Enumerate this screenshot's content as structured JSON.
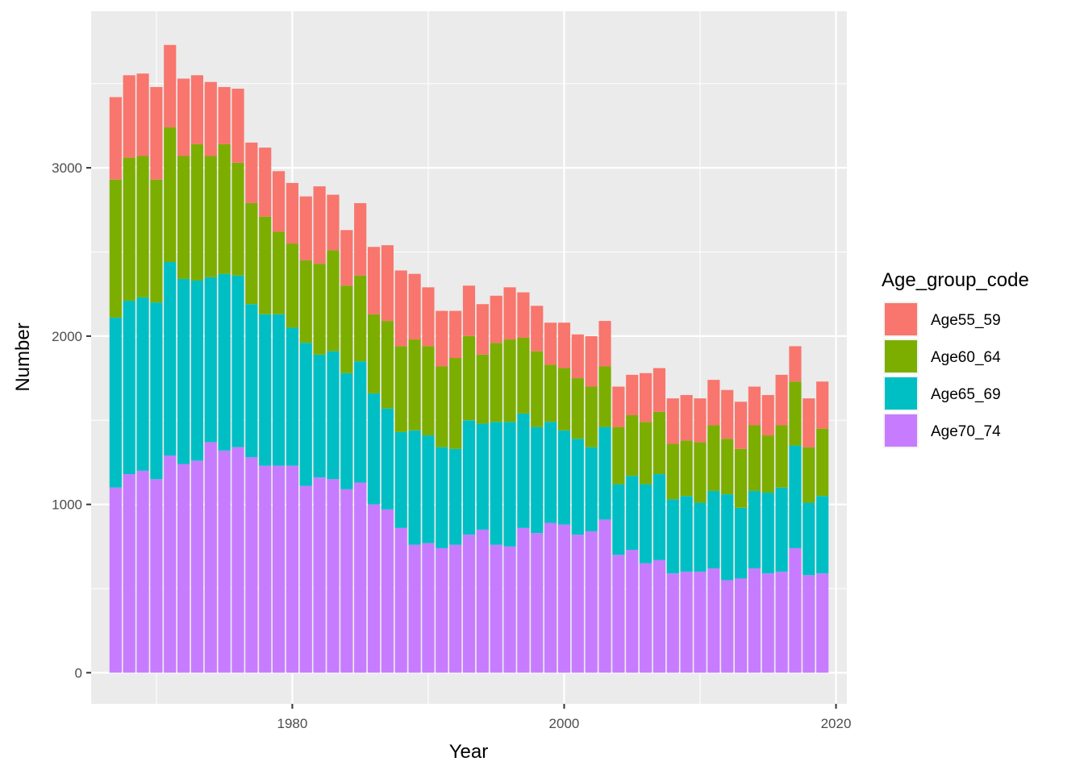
{
  "chart_data": {
    "type": "bar",
    "stacked": true,
    "xlabel": "Year",
    "ylabel": "Number",
    "xlim": [
      1965.2,
      2020.8
    ],
    "ylim": [
      -185,
      3930
    ],
    "xticks": [
      1980,
      2000,
      2020
    ],
    "yticks": [
      0,
      1000,
      2000,
      3000
    ],
    "grid": true,
    "legend_title": "Age_group_code",
    "legend_position": "right",
    "x": [
      1967,
      1968,
      1969,
      1970,
      1971,
      1972,
      1973,
      1974,
      1975,
      1976,
      1977,
      1978,
      1979,
      1980,
      1981,
      1982,
      1983,
      1984,
      1985,
      1986,
      1987,
      1988,
      1989,
      1990,
      1991,
      1992,
      1993,
      1994,
      1995,
      1996,
      1997,
      1998,
      1999,
      2000,
      2001,
      2002,
      2003,
      2004,
      2005,
      2006,
      2007,
      2008,
      2009,
      2010,
      2011,
      2012,
      2013,
      2014,
      2015,
      2016,
      2017,
      2018,
      2019
    ],
    "series": [
      {
        "name": "Age55_59",
        "color": "#F8766D",
        "values": [
          490,
          490,
          490,
          550,
          490,
          460,
          410,
          440,
          340,
          440,
          360,
          410,
          360,
          360,
          380,
          460,
          330,
          330,
          430,
          400,
          450,
          450,
          390,
          350,
          330,
          280,
          300,
          300,
          280,
          310,
          270,
          270,
          250,
          270,
          260,
          300,
          270,
          240,
          240,
          290,
          260,
          270,
          270,
          260,
          270,
          290,
          280,
          230,
          240,
          300,
          210,
          290,
          280
        ]
      },
      {
        "name": "Age60_64",
        "color": "#7CAE00",
        "values": [
          820,
          850,
          840,
          730,
          800,
          730,
          810,
          720,
          770,
          670,
          600,
          580,
          490,
          500,
          490,
          540,
          600,
          520,
          510,
          470,
          520,
          510,
          540,
          530,
          480,
          540,
          500,
          410,
          470,
          490,
          450,
          450,
          340,
          370,
          360,
          360,
          360,
          340,
          360,
          370,
          370,
          330,
          330,
          360,
          390,
          330,
          350,
          390,
          340,
          370,
          380,
          330,
          400
        ]
      },
      {
        "name": "Age65_69",
        "color": "#00BFC4",
        "values": [
          1010,
          1030,
          1030,
          1050,
          1150,
          1100,
          1070,
          980,
          1050,
          1020,
          910,
          900,
          900,
          820,
          850,
          730,
          760,
          690,
          720,
          660,
          600,
          570,
          680,
          640,
          600,
          570,
          680,
          630,
          730,
          740,
          680,
          630,
          600,
          560,
          570,
          500,
          550,
          420,
          440,
          470,
          510,
          440,
          450,
          410,
          460,
          510,
          420,
          460,
          480,
          500,
          610,
          430,
          460
        ]
      },
      {
        "name": "Age70_74",
        "color": "#C77CFF",
        "values": [
          1100,
          1180,
          1200,
          1150,
          1290,
          1240,
          1260,
          1370,
          1320,
          1340,
          1280,
          1230,
          1230,
          1230,
          1110,
          1160,
          1150,
          1090,
          1130,
          1000,
          970,
          860,
          760,
          770,
          740,
          760,
          820,
          850,
          760,
          750,
          860,
          830,
          890,
          880,
          820,
          840,
          910,
          700,
          730,
          650,
          670,
          590,
          600,
          600,
          620,
          550,
          560,
          620,
          590,
          600,
          740,
          580,
          590
        ]
      }
    ]
  }
}
